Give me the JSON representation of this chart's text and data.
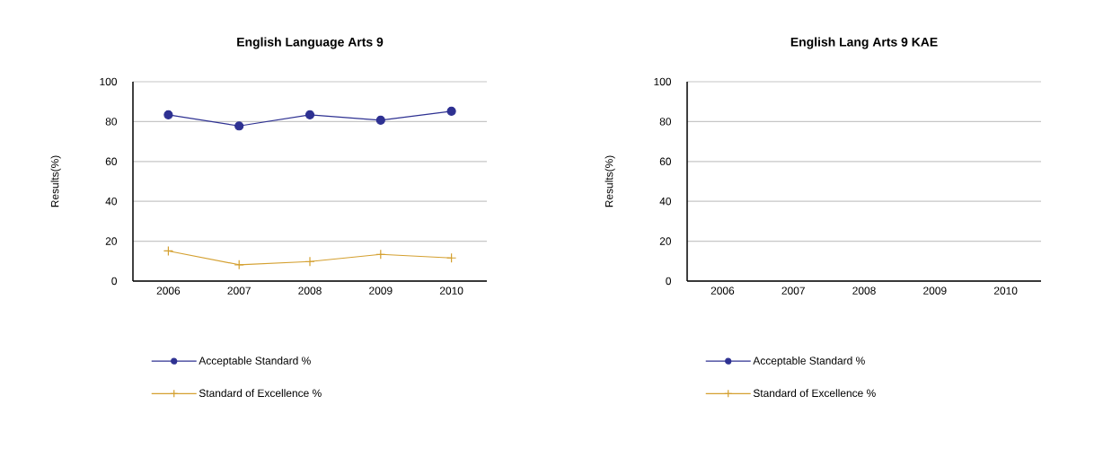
{
  "chart_data": [
    {
      "type": "line",
      "title": "English Language Arts 9",
      "ylabel": "Results(%)",
      "categories": [
        "2006",
        "2007",
        "2008",
        "2009",
        "2010"
      ],
      "series": [
        {
          "name": "Acceptable Standard %",
          "color": "#2e3192",
          "marker": "circle",
          "values": [
            83.4,
            77.8,
            83.4,
            80.7,
            85.2
          ]
        },
        {
          "name": "Standard of Excellence %",
          "color": "#d4a030",
          "marker": "cross",
          "values": [
            15.1,
            8.2,
            9.8,
            13.4,
            11.6
          ]
        }
      ],
      "ylim": [
        0,
        100
      ],
      "yticks": [
        0,
        20,
        40,
        60,
        80,
        100
      ],
      "grid": "y",
      "legend": "bottom"
    },
    {
      "type": "line",
      "title": "English Lang Arts 9 KAE",
      "ylabel": "Results(%)",
      "categories": [
        "2006",
        "2007",
        "2008",
        "2009",
        "2010"
      ],
      "series": [
        {
          "name": "Acceptable Standard %",
          "color": "#2e3192",
          "marker": "circle",
          "values": [
            null,
            null,
            null,
            null,
            null
          ]
        },
        {
          "name": "Standard of Excellence %",
          "color": "#d4a030",
          "marker": "cross",
          "values": [
            null,
            null,
            null,
            null,
            null
          ]
        }
      ],
      "ylim": [
        0,
        100
      ],
      "yticks": [
        0,
        20,
        40,
        60,
        80,
        100
      ],
      "grid": "y",
      "legend": "bottom"
    }
  ]
}
